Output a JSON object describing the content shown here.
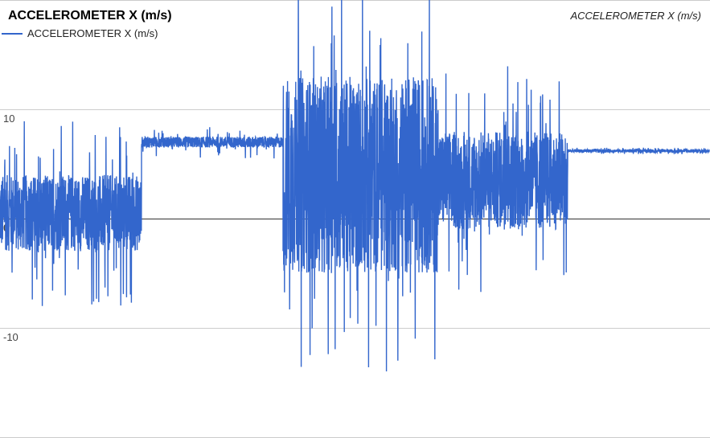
{
  "chart_data": {
    "type": "line",
    "title": "ACCELEROMETER X (m/s)",
    "ylabel": "ACCELEROMETER X (m/s)",
    "legend": {
      "position": "top-left",
      "entries": [
        "ACCELEROMETER X (m/s)"
      ]
    },
    "ylim": [
      -20,
      20
    ],
    "yticks": [
      {
        "value": 10,
        "label": "10"
      },
      {
        "value": 0,
        "label": "0"
      },
      {
        "value": -10,
        "label": "-10"
      }
    ],
    "grid": true,
    "series": [
      {
        "name": "ACCELEROMETER X (m/s)",
        "color": "#3366cc",
        "segments": [
          {
            "x_start": 0,
            "x_end": 176,
            "mean": 0.5,
            "amplitude": 3.5,
            "peak": 8.5
          },
          {
            "x_start": 176,
            "x_end": 352,
            "mean": 7.0,
            "amplitude": 0.5,
            "peak": 1.5
          },
          {
            "x_start": 352,
            "x_end": 545,
            "mean": 4.0,
            "amplitude": 9.0,
            "peak": 18.0
          },
          {
            "x_start": 545,
            "x_end": 706,
            "mean": 3.5,
            "amplitude": 4.5,
            "peak": 10.5
          },
          {
            "x_start": 706,
            "x_end": 882,
            "mean": 6.2,
            "amplitude": 0.15,
            "peak": 0.3
          }
        ],
        "samples_per_x": 5
      }
    ]
  }
}
